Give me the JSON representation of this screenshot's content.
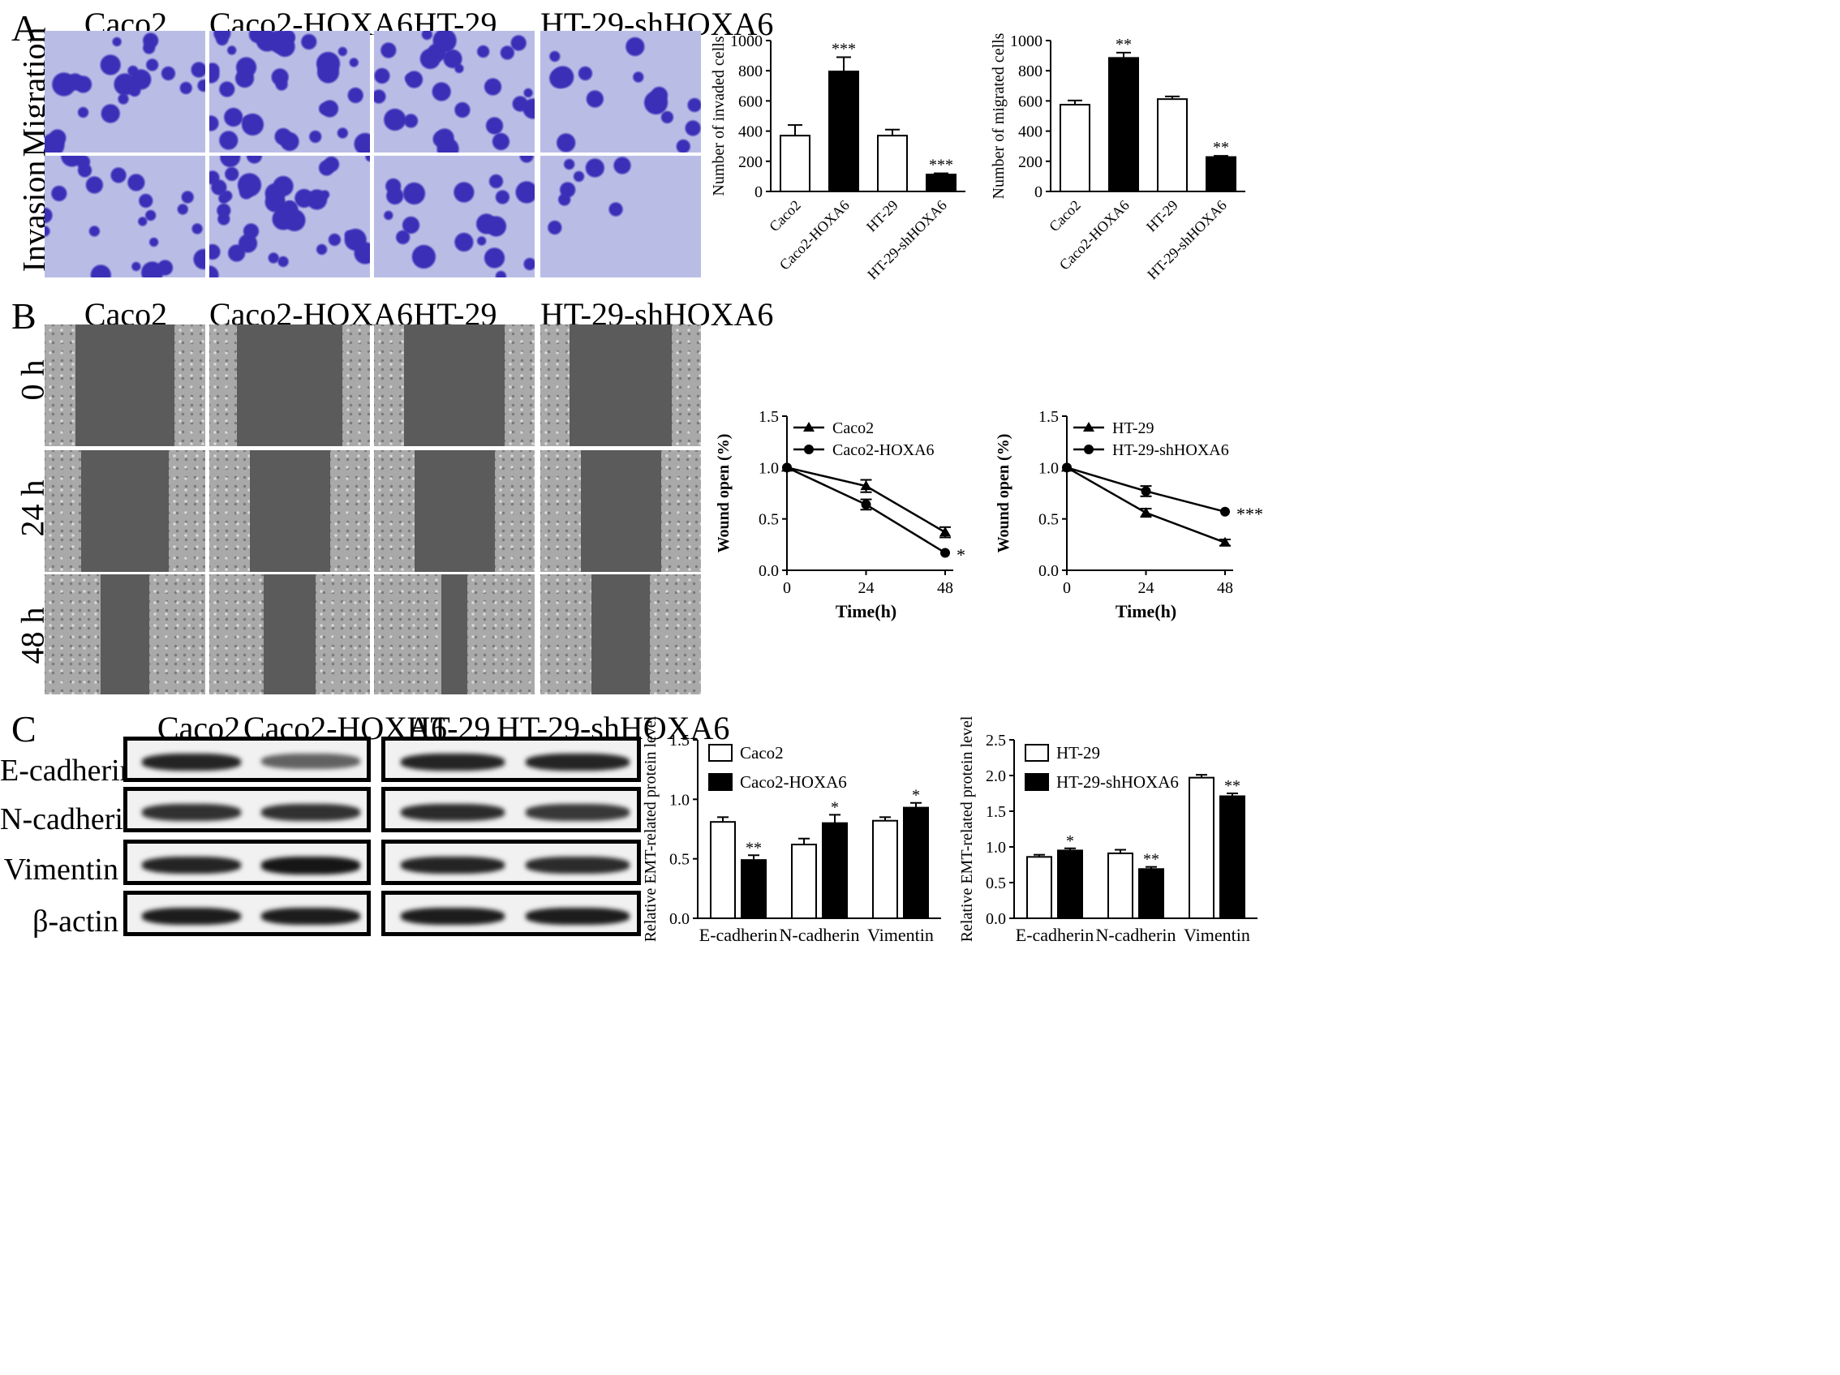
{
  "panels": {
    "a": {
      "letter": "A",
      "columns": [
        "Caco2",
        "Caco2-HOXA6",
        "HT-29",
        "HT-29-shHOXA6"
      ],
      "rows": [
        "Migration",
        "Invasion"
      ],
      "tile_colors": {
        "background": "#b9bde6",
        "stain": "#3b2fb8"
      }
    },
    "b": {
      "letter": "B",
      "columns": [
        "Caco2",
        "Caco2-HOXA6",
        "HT-29",
        "HT-29-shHOXA6"
      ],
      "rows": [
        "0 h",
        "24 h",
        "48 h"
      ]
    },
    "c": {
      "letter": "C",
      "blot_groups": [
        {
          "labels": [
            "Caco2",
            "Caco2-HOXA6"
          ]
        },
        {
          "labels": [
            "HT-29",
            "HT-29-shHOXA6"
          ]
        }
      ],
      "proteins": [
        "E-cadherin",
        "N-cadherin",
        "Vimentin",
        "β-actin"
      ]
    }
  },
  "chart_data": [
    {
      "id": "invaded",
      "type": "bar",
      "categories": [
        "Caco2",
        "Caco2-HOXA6",
        "HT-29",
        "HT-29-shHOXA6"
      ],
      "values": [
        370,
        795,
        370,
        112
      ],
      "errors": [
        70,
        95,
        40,
        8
      ],
      "fills": [
        "#ffffff",
        "#000000",
        "#ffffff",
        "#000000"
      ],
      "significance": [
        "",
        "***",
        "",
        "***"
      ],
      "ylabel": "Number of invaded cells",
      "ylim": [
        0,
        1000
      ],
      "yticks": [
        0,
        200,
        400,
        600,
        800,
        1000
      ]
    },
    {
      "id": "migrated",
      "type": "bar",
      "categories": [
        "Caco2",
        "Caco2-HOXA6",
        "HT-29",
        "HT-29-shHOXA6"
      ],
      "values": [
        575,
        885,
        612,
        228
      ],
      "errors": [
        28,
        35,
        18,
        8
      ],
      "fills": [
        "#ffffff",
        "#000000",
        "#ffffff",
        "#000000"
      ],
      "significance": [
        "",
        "**",
        "",
        "**"
      ],
      "ylabel": "Number of migrated cells",
      "ylim": [
        0,
        1000
      ],
      "yticks": [
        0,
        200,
        400,
        600,
        800,
        1000
      ]
    },
    {
      "id": "wound-caco2",
      "type": "line",
      "x": [
        0,
        24,
        48
      ],
      "xticks": [
        0,
        24,
        48
      ],
      "series": [
        {
          "name": "Caco2",
          "marker": "triangle",
          "values": [
            1.0,
            0.82,
            0.37
          ],
          "errors": [
            0,
            0.06,
            0.05
          ]
        },
        {
          "name": "Caco2-HOXA6",
          "marker": "circle",
          "values": [
            1.0,
            0.64,
            0.17
          ],
          "errors": [
            0,
            0.05,
            0
          ]
        }
      ],
      "annotation": "*",
      "xlabel": "Time(h)",
      "ylabel": "Wound open (%)",
      "ylim": [
        0,
        1.5
      ],
      "yticks": [
        "0.0",
        "0.5",
        "1.0",
        "1.5"
      ],
      "legend": "top-left"
    },
    {
      "id": "wound-ht29",
      "type": "line",
      "x": [
        0,
        24,
        48
      ],
      "xticks": [
        0,
        24,
        48
      ],
      "series": [
        {
          "name": "HT-29",
          "marker": "triangle",
          "values": [
            1.0,
            0.56,
            0.27
          ],
          "errors": [
            0,
            0.04,
            0.03
          ]
        },
        {
          "name": "HT-29-shHOXA6",
          "marker": "circle",
          "values": [
            1.0,
            0.77,
            0.57
          ],
          "errors": [
            0,
            0.05,
            0
          ]
        }
      ],
      "annotation": "***",
      "xlabel": "Time(h)",
      "ylabel": "Wound open (%)",
      "ylim": [
        0,
        1.5
      ],
      "yticks": [
        "0.0",
        "0.5",
        "1.0",
        "1.5"
      ],
      "legend": "top-left"
    },
    {
      "id": "emt-caco2",
      "type": "bar",
      "categories": [
        "E-cadherin",
        "N-cadherin",
        "Vimentin"
      ],
      "series": [
        {
          "name": "Caco2",
          "fill": "#ffffff",
          "values": [
            0.81,
            0.62,
            0.82
          ],
          "errors": [
            0.04,
            0.05,
            0.03
          ],
          "significance": [
            "",
            "",
            ""
          ]
        },
        {
          "name": "Caco2-HOXA6",
          "fill": "#000000",
          "values": [
            0.49,
            0.8,
            0.93
          ],
          "errors": [
            0.04,
            0.07,
            0.04
          ],
          "significance": [
            "**",
            "*",
            "*"
          ]
        }
      ],
      "ylabel": "Relative EMT-related protein level",
      "ylim": [
        0,
        1.5
      ],
      "yticks": [
        "0.0",
        "0.5",
        "1.0",
        "1.5"
      ],
      "legend": "top-left"
    },
    {
      "id": "emt-ht29",
      "type": "bar",
      "categories": [
        "E-cadherin",
        "N-cadherin",
        "Vimentin"
      ],
      "series": [
        {
          "name": "HT-29",
          "fill": "#ffffff",
          "values": [
            0.86,
            0.91,
            1.97
          ],
          "errors": [
            0.03,
            0.05,
            0.04
          ],
          "significance": [
            "",
            "",
            ""
          ]
        },
        {
          "name": "HT-29-shHOXA6",
          "fill": "#000000",
          "values": [
            0.95,
            0.69,
            1.71
          ],
          "errors": [
            0.03,
            0.03,
            0.04
          ],
          "significance": [
            "*",
            "**",
            "**"
          ]
        }
      ],
      "ylabel": "Relative EMT-related protein level",
      "ylim": [
        0,
        2.5
      ],
      "yticks": [
        "0.0",
        "0.5",
        "1.0",
        "1.5",
        "2.0",
        "2.5"
      ],
      "legend": "top-left"
    }
  ]
}
